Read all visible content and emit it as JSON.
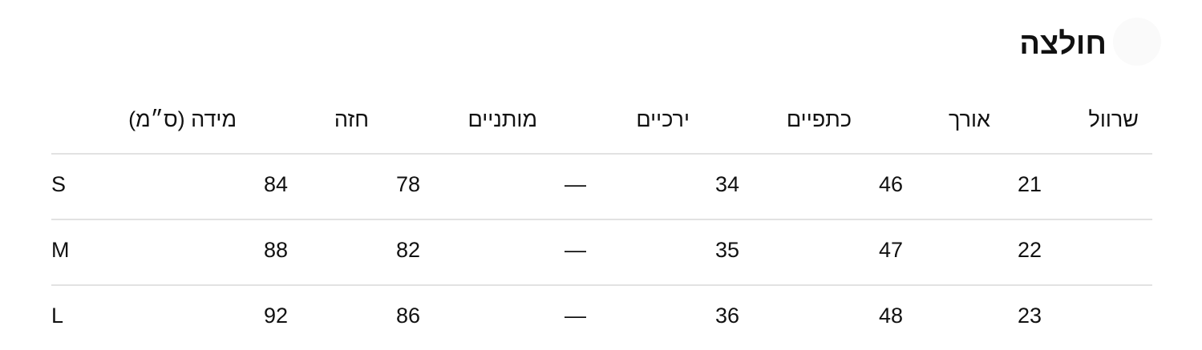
{
  "title": "חולצה",
  "table": {
    "headers": [
      "מידה (ס״מ)",
      "חזה",
      "מותניים",
      "ירכיים",
      "כתפיים",
      "אורך",
      "שרוול"
    ],
    "rows": [
      [
        "S",
        "84",
        "78",
        "—",
        "34",
        "46",
        "21"
      ],
      [
        "M",
        "88",
        "82",
        "—",
        "35",
        "47",
        "22"
      ],
      [
        "L",
        "92",
        "86",
        "—",
        "36",
        "48",
        "23"
      ]
    ]
  }
}
